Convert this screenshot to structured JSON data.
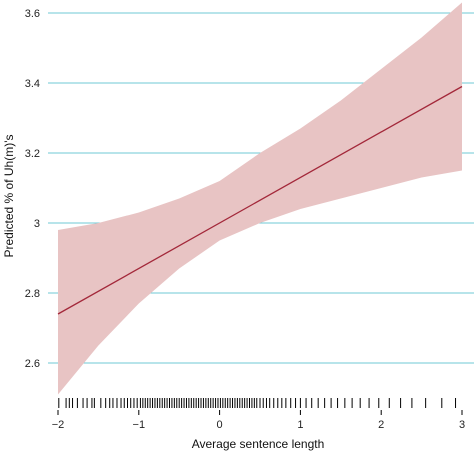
{
  "chart_data": {
    "type": "line",
    "xlabel": "Average sentence length",
    "ylabel": "Predicted % of Uh(m)'s",
    "xlim": [
      -2,
      3
    ],
    "ylim": [
      2.5,
      3.65
    ],
    "x_ticks": [
      -2,
      -1,
      0,
      1,
      2,
      3
    ],
    "x_tick_labels": [
      "−2",
      "−1",
      "0",
      "1",
      "2",
      "3"
    ],
    "y_ticks": [
      2.6,
      2.8,
      3,
      3.2,
      3.4,
      3.6
    ],
    "y_tick_labels": [
      "2.6",
      "2.8",
      "3",
      "3.2",
      "3.4",
      "3.6"
    ],
    "grid": "horizontal",
    "colors": {
      "line": "#a3283a",
      "band": "#e8c4c4",
      "grid": "#6fc9d6",
      "rug": "#000000"
    },
    "fit": {
      "x": [
        -2,
        3
      ],
      "y": [
        2.74,
        3.39
      ]
    },
    "confidence_band": {
      "x": [
        -2,
        -1.5,
        -1,
        -0.5,
        0,
        0.5,
        1,
        1.5,
        2,
        2.5,
        3
      ],
      "lower": [
        2.51,
        2.65,
        2.77,
        2.87,
        2.95,
        3.0,
        3.04,
        3.07,
        3.1,
        3.13,
        3.15
      ],
      "upper": [
        2.98,
        3.0,
        3.03,
        3.07,
        3.12,
        3.2,
        3.27,
        3.35,
        3.44,
        3.53,
        3.63
      ]
    },
    "rug_x": [
      -1.99,
      -1.9,
      -1.86,
      -1.82,
      -1.76,
      -1.69,
      -1.64,
      -1.58,
      -1.55,
      -1.47,
      -1.41,
      -1.36,
      -1.32,
      -1.27,
      -1.22,
      -1.18,
      -1.14,
      -1.1,
      -1.06,
      -1.02,
      -0.98,
      -0.95,
      -0.92,
      -0.89,
      -0.86,
      -0.83,
      -0.8,
      -0.77,
      -0.74,
      -0.71,
      -0.68,
      -0.65,
      -0.62,
      -0.59,
      -0.56,
      -0.53,
      -0.5,
      -0.47,
      -0.44,
      -0.41,
      -0.38,
      -0.35,
      -0.32,
      -0.29,
      -0.26,
      -0.23,
      -0.2,
      -0.17,
      -0.14,
      -0.11,
      -0.08,
      -0.05,
      -0.02,
      0.01,
      0.04,
      0.07,
      0.1,
      0.13,
      0.16,
      0.19,
      0.22,
      0.25,
      0.28,
      0.31,
      0.34,
      0.37,
      0.4,
      0.43,
      0.46,
      0.5,
      0.54,
      0.58,
      0.62,
      0.67,
      0.72,
      0.77,
      0.82,
      0.88,
      0.94,
      1.0,
      1.07,
      1.14,
      1.22,
      1.3,
      1.38,
      1.46,
      1.55,
      1.64,
      1.74,
      1.85,
      1.97,
      2.1,
      2.24,
      2.38,
      2.55,
      2.75,
      2.92
    ]
  }
}
